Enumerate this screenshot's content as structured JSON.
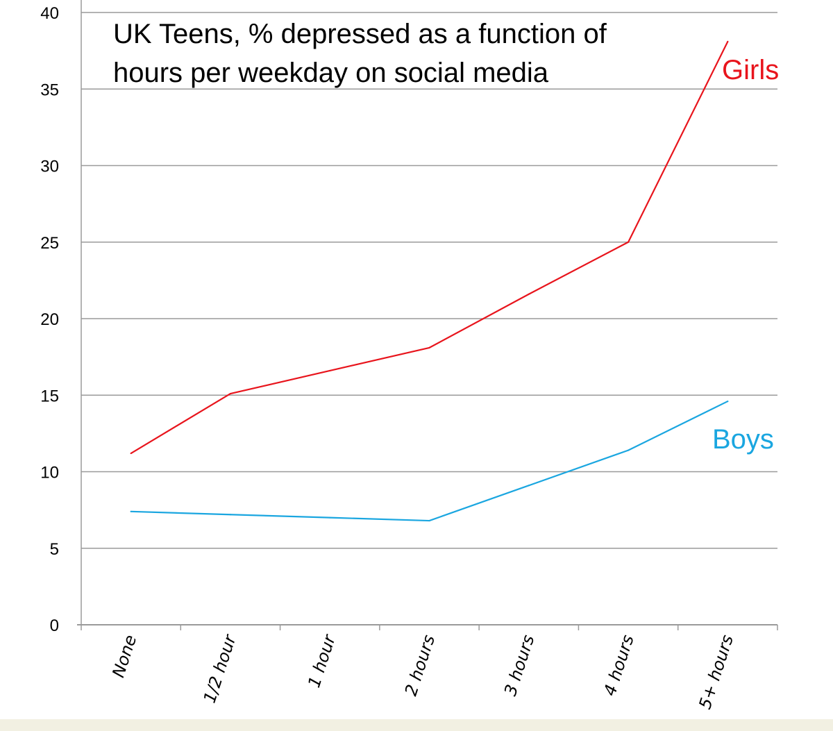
{
  "chart_data": {
    "type": "line",
    "title": [
      "UK Teens, % depressed as a function of",
      "hours per weekday on social media"
    ],
    "xlabel": "",
    "ylabel": "",
    "categories": [
      "None",
      "1/2 hour",
      "1 hour",
      "2 hours",
      "3 hours",
      "4 hours",
      "5+ hours"
    ],
    "ylim": [
      0,
      40
    ],
    "yticks": [
      "0",
      "5",
      "10",
      "15",
      "20",
      "25",
      "30",
      "35",
      "40"
    ],
    "grid": true,
    "legend": "direct labels at right",
    "series": [
      {
        "name": "Girls",
        "color": "#e8141c",
        "values": [
          11.2,
          15.1,
          16.6,
          18.1,
          21.6,
          25.0,
          38.1
        ]
      },
      {
        "name": "Boys",
        "color": "#1aa6e0",
        "values": [
          7.4,
          7.2,
          7.0,
          6.8,
          9.1,
          11.4,
          14.6
        ]
      }
    ]
  }
}
